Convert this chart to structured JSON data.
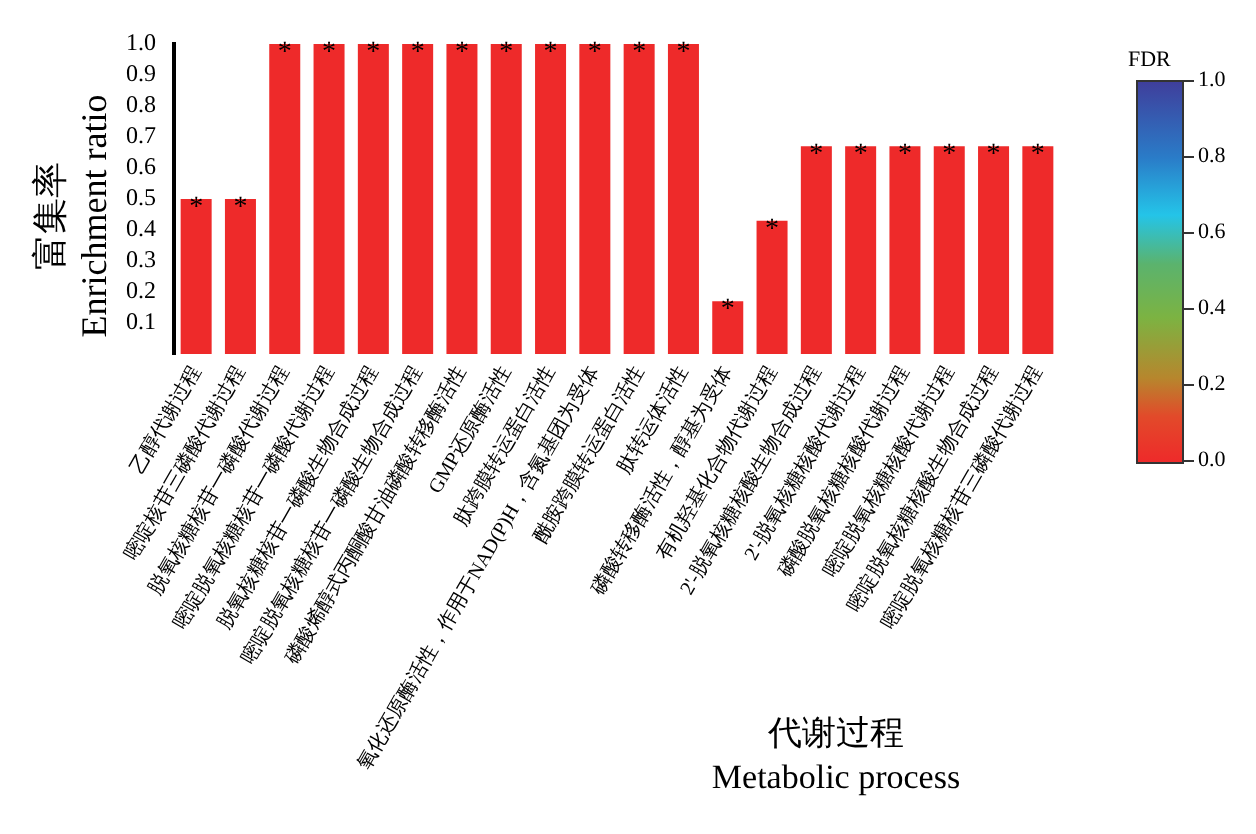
{
  "chart_data": {
    "type": "bar",
    "ylabel": "富集率\nEnrichment ratio",
    "xlabel": "代谢过程\nMetabolic process",
    "categories": [
      "乙醇代谢过程",
      "嘧啶核苷三磷酸代谢过程",
      "脱氧核糖核苷一磷酸代谢过程",
      "嘧啶脱氧核糖核苷一磷酸代谢过程",
      "脱氧核糖核苷一磷酸生物合成过程",
      "嘧啶脱氧核糖核苷一磷酸生物合成过程",
      "磷酸烯醇式丙酮酸甘油磷酸转移酶活性",
      "GMP还原酶活性",
      "肽跨膜转运蛋白活性",
      "氧化还原酶活性，作用于NAD(P)H，含氮基团为受体",
      "酰胺跨膜转运蛋白活性",
      "肽转运体活性",
      "磷酸转移酶活性，醇基为受体",
      "有机羟基化合物代谢过程",
      "2'-脱氧核糖核酸生物合成过程",
      "2'-脱氧核糖核酸代谢过程",
      "磷酸脱氧核糖核酸代谢过程",
      "嘧啶脱氧核糖核酸代谢过程",
      "嘧啶脱氧核糖核酸生物合成过程",
      "嘧啶脱氧核糖核苷三磷酸代谢过程"
    ],
    "values": [
      0.5,
      0.5,
      1,
      1,
      1,
      1,
      1,
      1,
      1,
      1,
      1,
      1,
      0.17,
      0.43,
      0.67,
      0.67,
      0.67,
      0.67,
      0.67,
      0.67
    ],
    "value_labels": [
      "*",
      "*",
      "*",
      "*",
      "*",
      "*",
      "*",
      "*",
      "*",
      "*",
      "*",
      "*",
      "*",
      "*",
      "*",
      "*",
      "*",
      "*",
      "*",
      "*"
    ],
    "color": "#ee2a2a",
    "ylim": [
      0,
      1
    ],
    "yticks": [
      0.1,
      0.2,
      0.3,
      0.4,
      0.5,
      0.6,
      0.7,
      0.8,
      0.9,
      {
        "value": 1,
        "label": "1.0"
      }
    ],
    "grid": false,
    "legend": false,
    "clabel": "FDR",
    "clim": [
      0,
      1
    ],
    "cticks": [
      {
        "value": 0,
        "label": "0.0"
      },
      0.2,
      0.4,
      0.6,
      0.8,
      {
        "value": 1,
        "label": "1.0"
      }
    ]
  }
}
